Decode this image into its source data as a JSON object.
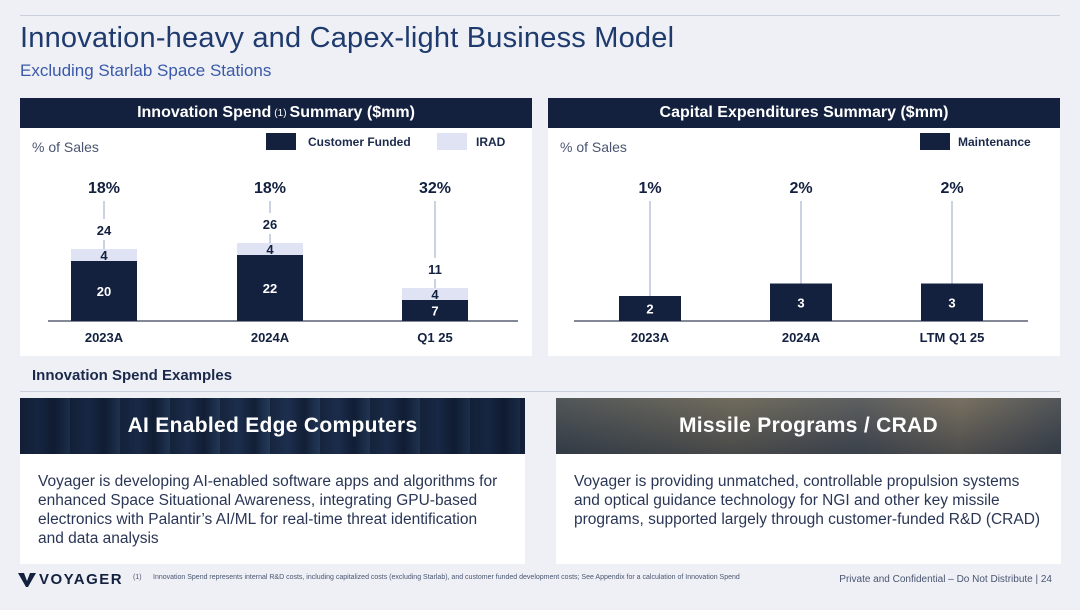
{
  "header": {
    "title": "Innovation-heavy and Capex-light Business Model",
    "subtitle": "Excluding Starlab Space Stations"
  },
  "innovation_panel": {
    "title_prefix": "Innovation Spend",
    "title_sup": "(1)",
    "title_suffix": "Summary ($mm)",
    "pct_label": "% of Sales",
    "legend": {
      "customer_funded": "Customer Funded",
      "irad": "IRAD"
    }
  },
  "capex_panel": {
    "title": "Capital Expenditures Summary ($mm)",
    "pct_label": "% of Sales",
    "legend": {
      "maintenance": "Maintenance"
    }
  },
  "chart_data": [
    {
      "type": "bar",
      "stacked": true,
      "title": "Innovation Spend (1) Summary ($mm)",
      "categories": [
        "2023A",
        "2024A",
        "Q1 25"
      ],
      "series": [
        {
          "name": "Customer Funded",
          "values": [
            20,
            22,
            7
          ],
          "color": "#13213f"
        },
        {
          "name": "IRAD",
          "values": [
            4,
            4,
            4
          ],
          "color": "#dfe3f3"
        }
      ],
      "totals": [
        24,
        26,
        11
      ],
      "pct_of_sales": [
        "18%",
        "18%",
        "32%"
      ],
      "ylim": [
        0,
        30
      ],
      "grid": false,
      "legend": "top-right"
    },
    {
      "type": "bar",
      "title": "Capital Expenditures Summary ($mm)",
      "categories": [
        "2023A",
        "2024A",
        "LTM Q1 25"
      ],
      "series": [
        {
          "name": "Maintenance",
          "values": [
            2,
            3,
            3
          ],
          "color": "#13213f"
        }
      ],
      "pct_of_sales": [
        "1%",
        "2%",
        "2%"
      ],
      "ylim": [
        0,
        6
      ],
      "grid": false,
      "legend": "top-right"
    }
  ],
  "examples": {
    "section_label": "Innovation Spend Examples",
    "cards": [
      {
        "title": "AI Enabled Edge Computers",
        "text": "Voyager is developing AI-enabled software apps and algorithms for enhanced Space Situational Awareness, integrating GPU-based electronics with Palantir’s AI/ML for real-time threat identification and data analysis"
      },
      {
        "title": "Missile Programs / CRAD",
        "text": "Voyager is providing unmatched, controllable propulsion systems and optical guidance technology for NGI and other key missile programs, supported largely through customer-funded R&D (CRAD)"
      }
    ]
  },
  "footer": {
    "logo": "VOYAGER",
    "footnote_num": "(1)",
    "footnote": "Innovation Spend represents internal R&D costs, including capitalized costs (excluding Starlab), and customer funded development costs; See Appendix for a calculation of Innovation Spend",
    "confidential": "Private and Confidential – Do Not Distribute | 24"
  },
  "colors": {
    "navy": "#13213f",
    "irad": "#dfe3f3",
    "accent_blue": "#3a59a8",
    "background": "#eef0f6"
  }
}
